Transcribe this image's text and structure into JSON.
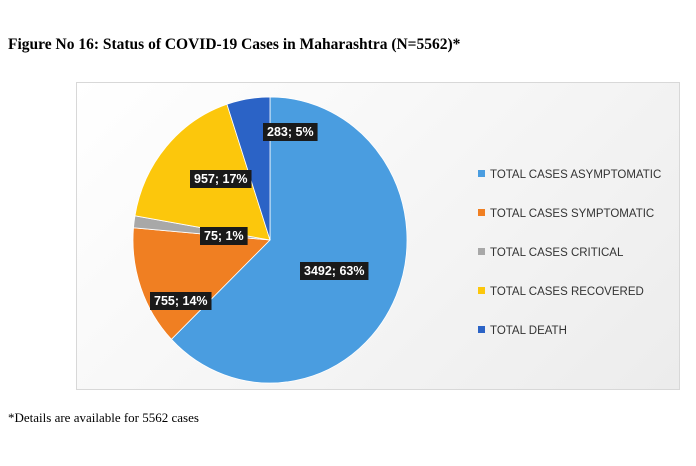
{
  "chart_data": {
    "type": "pie",
    "title": "Figure No 16: Status of COVID-19 Cases in Maharashtra (N=5562)*",
    "footnote": "*Details are available for 5562 cases",
    "legend_position": "right",
    "slices": [
      {
        "name": "TOTAL CASES ASYMPTOMATIC",
        "value": 3492,
        "percent": 63,
        "label": "3492; 63%",
        "color": "#4a9de0"
      },
      {
        "name": "TOTAL CASES SYMPTOMATIC",
        "value": 755,
        "percent": 14,
        "label": "755; 14%",
        "color": "#f07f22"
      },
      {
        "name": "TOTAL CASES CRITICAL",
        "value": 75,
        "percent": 1,
        "label": "75; 1%",
        "color": "#a8a8a8"
      },
      {
        "name": "TOTAL CASES RECOVERED",
        "value": 957,
        "percent": 17,
        "label": "957; 17%",
        "color": "#fcc70c"
      },
      {
        "name": "TOTAL DEATH",
        "value": 283,
        "percent": 5,
        "label": "283; 5%",
        "color": "#2b63c6"
      }
    ]
  }
}
